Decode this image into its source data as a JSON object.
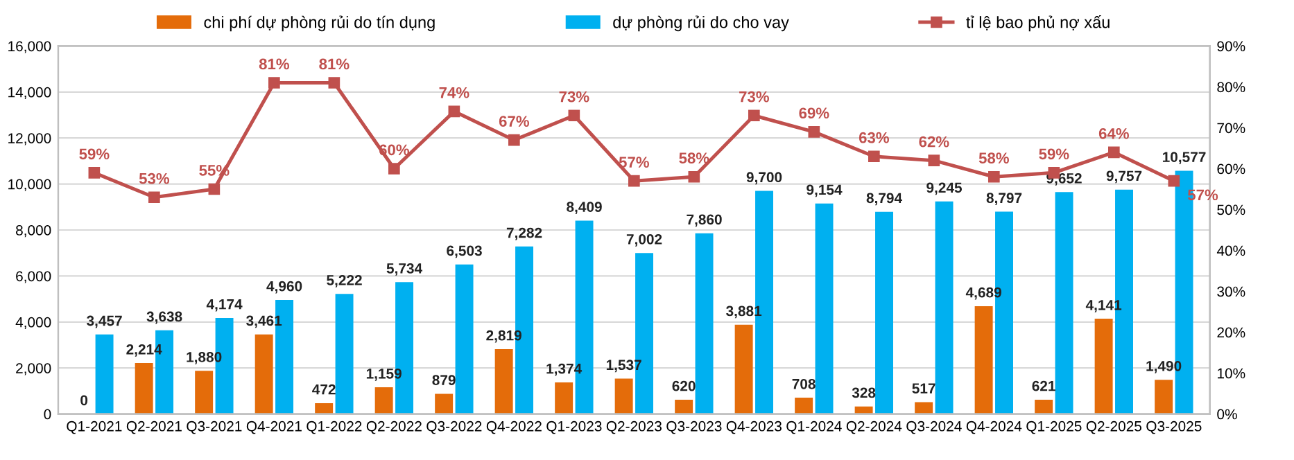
{
  "chart_data": {
    "type": "bar",
    "categories": [
      "Q1-2021",
      "Q2-2021",
      "Q3-2021",
      "Q4-2021",
      "Q1-2022",
      "Q2-2022",
      "Q3-2022",
      "Q4-2022",
      "Q1-2023",
      "Q2-2023",
      "Q3-2023",
      "Q4-2023",
      "Q1-2024",
      "Q2-2024",
      "Q3-2024",
      "Q4-2024",
      "Q1-2025",
      "Q2-2025",
      "Q3-2025"
    ],
    "series": [
      {
        "name": "chi phí dự phòng rủi do tín dụng",
        "color": "#e46c0a",
        "values": [
          0,
          2214,
          1880,
          3461,
          472,
          1159,
          879,
          2819,
          1374,
          1537,
          620,
          3881,
          708,
          328,
          517,
          4689,
          621,
          4141,
          1490
        ],
        "value_labels": [
          "0",
          "2,214",
          "1,880",
          "3,461",
          "472",
          "1,159",
          "879",
          "2,819",
          "1,374",
          "1,537",
          "620",
          "3,881",
          "708",
          "328",
          "517",
          "4,689",
          "621",
          "4,141",
          "1,490"
        ]
      },
      {
        "name": "dự phòng rủi do cho vay",
        "color": "#00b0f0",
        "values": [
          3457,
          3638,
          4174,
          4960,
          5222,
          5734,
          6503,
          7282,
          8409,
          7002,
          7860,
          9700,
          9154,
          8794,
          9245,
          8797,
          9652,
          9757,
          10577
        ],
        "value_labels": [
          "3,457",
          "3,638",
          "4,174",
          "4,960",
          "5,222",
          "5,734",
          "6,503",
          "7,282",
          "8,409",
          "7,002",
          "7,860",
          "9,700",
          "9,154",
          "8,794",
          "9,245",
          "8,797",
          "9,652",
          "9,757",
          "10,577"
        ]
      },
      {
        "name": "tỉ lệ bao phủ nợ xấu",
        "color": "#c0504d",
        "type": "line",
        "axis": "y2",
        "marker": "square",
        "values": [
          59,
          53,
          55,
          81,
          81,
          60,
          74,
          67,
          73,
          57,
          58,
          73,
          69,
          63,
          62,
          58,
          59,
          64,
          57
        ],
        "value_labels": [
          "59%",
          "53%",
          "55%",
          "81%",
          "81%",
          "60%",
          "74%",
          "67%",
          "73%",
          "57%",
          "58%",
          "73%",
          "69%",
          "63%",
          "62%",
          "58%",
          "59%",
          "64%",
          "57%"
        ]
      }
    ],
    "ylim": [
      0,
      16000
    ],
    "yticks": [
      0,
      {
        "value": 2000,
        "label": "2,000"
      },
      {
        "value": 4000,
        "label": "4,000"
      },
      {
        "value": 6000,
        "label": "6,000"
      },
      {
        "value": 8000,
        "label": "8,000"
      },
      {
        "value": 10000,
        "label": "10,000"
      },
      {
        "value": 12000,
        "label": "12,000"
      },
      {
        "value": 14000,
        "label": "14,000"
      },
      {
        "value": 16000,
        "label": "16,000"
      }
    ],
    "y2lim": [
      0,
      90
    ],
    "y2ticks": [
      {
        "value": 0,
        "label": "0%"
      },
      {
        "value": 10,
        "label": "10%"
      },
      {
        "value": 20,
        "label": "20%"
      },
      {
        "value": 30,
        "label": "30%"
      },
      {
        "value": 40,
        "label": "40%"
      },
      {
        "value": 50,
        "label": "50%"
      },
      {
        "value": 60,
        "label": "60%"
      },
      {
        "value": 70,
        "label": "70%"
      },
      {
        "value": 80,
        "label": "80%"
      },
      {
        "value": 90,
        "label": "90%"
      }
    ],
    "grid": "y",
    "legend": "top"
  }
}
